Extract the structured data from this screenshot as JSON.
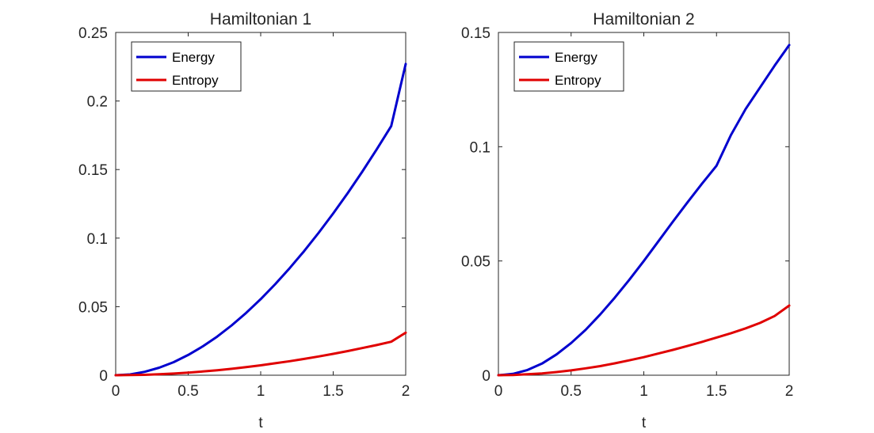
{
  "colors": {
    "energy": "#0000ce",
    "entropy": "#e00000",
    "axis": "#262626",
    "background": "#ffffff"
  },
  "chart_data": [
    {
      "type": "line",
      "title": "Hamiltonian 1",
      "xlabel": "t",
      "ylabel": "",
      "xlim": [
        0,
        2
      ],
      "ylim": [
        0,
        0.25
      ],
      "xticks": [
        "0",
        "0.5",
        "1",
        "1.5",
        "2"
      ],
      "yticks": [
        "0",
        "0.05",
        "0.1",
        "0.15",
        "0.2",
        "0.25"
      ],
      "grid": false,
      "legend": "top-left",
      "x": [
        0,
        0.1,
        0.2,
        0.3,
        0.4,
        0.5,
        0.6,
        0.7,
        0.8,
        0.9,
        1.0,
        1.1,
        1.2,
        1.3,
        1.4,
        1.5,
        1.6,
        1.7,
        1.8,
        1.9,
        2.0
      ],
      "series": [
        {
          "name": "Energy",
          "color": "#0000ce",
          "values": [
            0,
            0.0006,
            0.0025,
            0.0055,
            0.0095,
            0.0148,
            0.021,
            0.0282,
            0.0364,
            0.0455,
            0.0555,
            0.0664,
            0.0781,
            0.0906,
            0.1039,
            0.118,
            0.1328,
            0.1484,
            0.1647,
            0.1817,
            0.227
          ]
        },
        {
          "name": "Entropy",
          "color": "#e00000",
          "values": [
            0,
            0.0001,
            0.0003,
            0.0007,
            0.0012,
            0.0019,
            0.0027,
            0.0036,
            0.0047,
            0.0059,
            0.0072,
            0.0087,
            0.0102,
            0.0119,
            0.0137,
            0.0156,
            0.0176,
            0.0198,
            0.022,
            0.0244,
            0.031
          ]
        }
      ]
    },
    {
      "type": "line",
      "title": "Hamiltonian 2",
      "xlabel": "t",
      "ylabel": "",
      "xlim": [
        0,
        2
      ],
      "ylim": [
        0,
        0.15
      ],
      "xticks": [
        "0",
        "0.5",
        "1",
        "1.5",
        "2"
      ],
      "yticks": [
        "0",
        "0.05",
        "0.1",
        "0.15"
      ],
      "grid": false,
      "legend": "top-left",
      "x": [
        0,
        0.1,
        0.2,
        0.3,
        0.4,
        0.5,
        0.6,
        0.7,
        0.8,
        0.9,
        1.0,
        1.1,
        1.2,
        1.3,
        1.4,
        1.5,
        1.6,
        1.7,
        1.8,
        1.9,
        2.0
      ],
      "series": [
        {
          "name": "Energy",
          "color": "#0000ce",
          "values": [
            0,
            0.0006,
            0.0023,
            0.0051,
            0.0091,
            0.0141,
            0.0199,
            0.0266,
            0.0339,
            0.0417,
            0.05,
            0.0586,
            0.0672,
            0.0756,
            0.0838,
            0.0917,
            0.1052,
            0.1165,
            0.126,
            0.1355,
            0.1445
          ]
        },
        {
          "name": "Entropy",
          "color": "#e00000",
          "values": [
            0,
            0.0001,
            0.0004,
            0.0008,
            0.0014,
            0.0021,
            0.003,
            0.004,
            0.0052,
            0.0065,
            0.0079,
            0.0095,
            0.0111,
            0.0128,
            0.0146,
            0.0165,
            0.0184,
            0.0205,
            0.0229,
            0.0259,
            0.0305
          ]
        }
      ]
    }
  ]
}
